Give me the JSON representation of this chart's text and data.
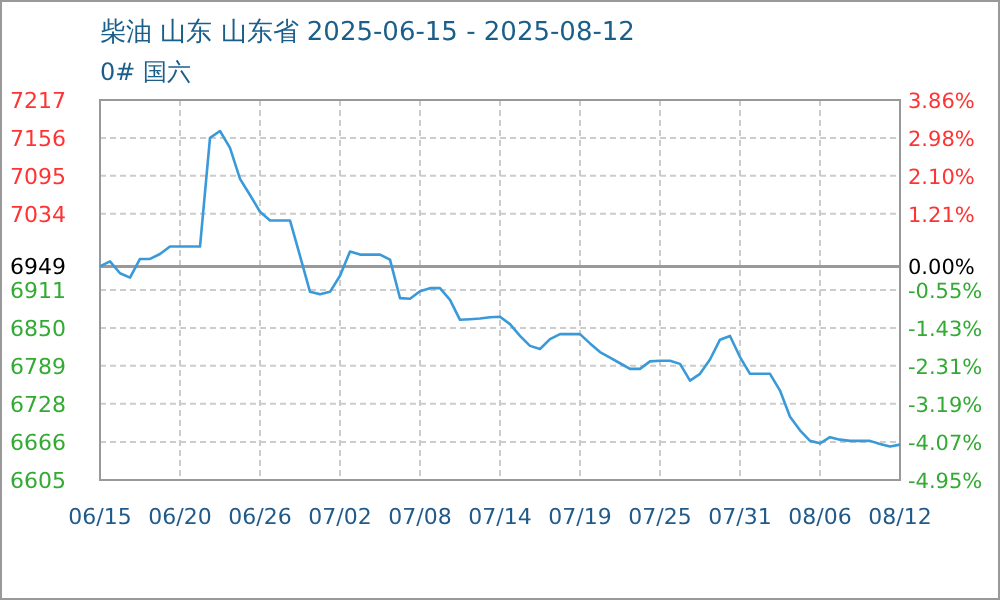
{
  "chart_data": {
    "type": "line",
    "title": "柴油 山东 山东省 2025-06-15 - 2025-08-12",
    "subtitle": "0# 国六",
    "categories": [
      "06/15",
      null,
      null,
      null,
      null,
      null,
      null,
      null,
      "06/20",
      null,
      null,
      null,
      null,
      null,
      null,
      null,
      "06/26",
      null,
      null,
      null,
      null,
      null,
      null,
      null,
      "07/02",
      null,
      null,
      null,
      null,
      null,
      null,
      null,
      "07/08",
      null,
      null,
      null,
      null,
      null,
      null,
      null,
      "07/14",
      null,
      null,
      null,
      null,
      null,
      null,
      null,
      "07/19",
      null,
      null,
      null,
      null,
      null,
      null,
      null,
      "07/25",
      null,
      null,
      null,
      null,
      null,
      null,
      null,
      "07/31",
      null,
      null,
      null,
      null,
      null,
      null,
      null,
      "08/06",
      null,
      null,
      null,
      null,
      null,
      null,
      null,
      "08/12"
    ],
    "series": [
      {
        "color": "#3a9ad9",
        "values": [
          6949,
          6957,
          6938,
          6931,
          6961,
          6961,
          6969,
          6981,
          6981,
          6981,
          6981,
          7156,
          7167,
          7140,
          7090,
          7064,
          7037,
          7023,
          7023,
          7023,
          6966,
          6908,
          6904,
          6908,
          6934,
          6973,
          6968,
          6968,
          6968,
          6960,
          6898,
          6897,
          6909,
          6914,
          6914,
          6895,
          6863,
          6864,
          6865,
          6867,
          6868,
          6856,
          6837,
          6821,
          6816,
          6832,
          6840,
          6840,
          6840,
          6825,
          6811,
          6802,
          6793,
          6784,
          6784,
          6796,
          6797,
          6797,
          6792,
          6765,
          6776,
          6799,
          6831,
          6837,
          6803,
          6776,
          6776,
          6776,
          6749,
          6707,
          6685,
          6668,
          6664,
          6674,
          6670,
          6668,
          6668,
          6668,
          6663,
          6659,
          6662
        ]
      }
    ],
    "ylim": [
      6605,
      7217
    ],
    "yticks": [
      7217,
      7156,
      7095,
      7034,
      6949,
      6911,
      6850,
      6789,
      6728,
      6666,
      6605
    ],
    "y2lim": [
      -4.95,
      3.86
    ],
    "y2ticks": [
      {
        "value": 3.86,
        "label": "3.86%"
      },
      {
        "value": 2.98,
        "label": "2.98%"
      },
      {
        "value": 2.1,
        "label": "2.10%"
      },
      {
        "value": 1.21,
        "label": "1.21%"
      },
      {
        "value": 0,
        "label": "0.00%"
      },
      {
        "value": -0.55,
        "label": "-0.55%"
      },
      {
        "value": -1.43,
        "label": "-1.43%"
      },
      {
        "value": -2.31,
        "label": "-2.31%"
      },
      {
        "value": -3.19,
        "label": "-3.19%"
      },
      {
        "value": -4.07,
        "label": "-4.07%"
      },
      {
        "value": -4.95,
        "label": "-4.95%"
      }
    ],
    "ref_lines": [
      {
        "axis": "y",
        "value": 6949,
        "color": "#999999"
      }
    ],
    "grid": true,
    "line_style": "solid",
    "marker": "none"
  }
}
